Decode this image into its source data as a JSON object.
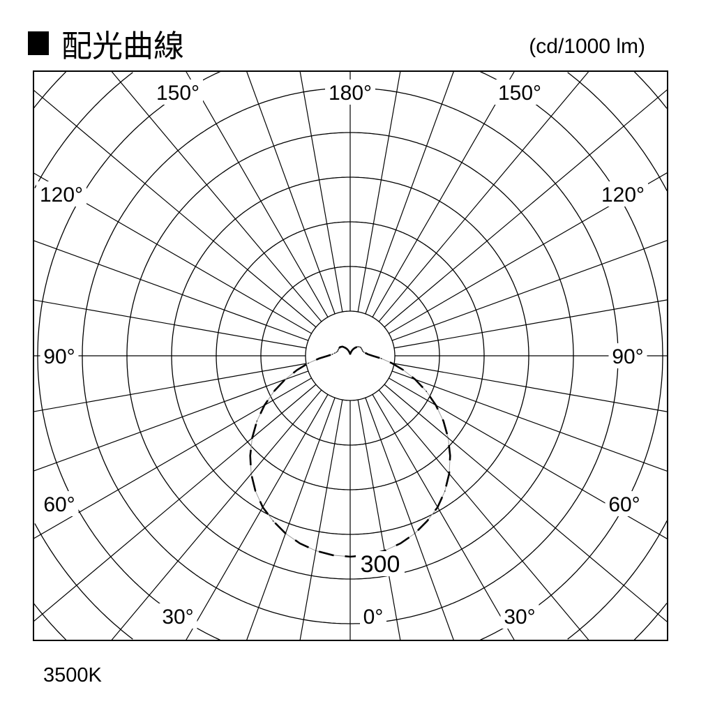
{
  "header": {
    "title": "配光曲線",
    "title_marker": "■",
    "unit": "(cd/1000 lm)"
  },
  "footer": {
    "color_temperature": "3500K"
  },
  "chart_data": {
    "type": "polar",
    "title": "配光曲線",
    "unit": "(cd/1000 lm)",
    "radial_tick_labels": [
      "300"
    ],
    "angle_labels": [
      "180°",
      "150°",
      "150°",
      "120°",
      "120°",
      "90°",
      "90°",
      "60°",
      "60°",
      "30°",
      "30°",
      "0°"
    ],
    "angle_grid_step_deg": 10,
    "radial_grid_step": 60,
    "grid": true,
    "series": [
      {
        "style": "dashed-black",
        "angles": [
          0,
          5,
          10,
          15,
          20,
          25,
          30,
          35,
          40,
          45,
          50,
          55,
          60,
          65,
          70,
          75,
          80,
          85,
          90,
          95,
          100,
          105,
          110,
          115,
          120,
          125,
          130,
          135,
          140,
          145,
          150,
          155,
          160,
          165,
          170,
          175,
          180
        ],
        "values": [
          270,
          269,
          266,
          261,
          254,
          245,
          235,
          222,
          207,
          190,
          172,
          153,
          133,
          113,
          93,
          74,
          57,
          42,
          30,
          24,
          21,
          19,
          18,
          18,
          18,
          18,
          18,
          17,
          16,
          14,
          12,
          10,
          8,
          6,
          4,
          3,
          2
        ]
      }
    ],
    "colors": {
      "grid": "#000000",
      "curve": "#000000",
      "curve_secondary": "#9a9a9a"
    }
  }
}
